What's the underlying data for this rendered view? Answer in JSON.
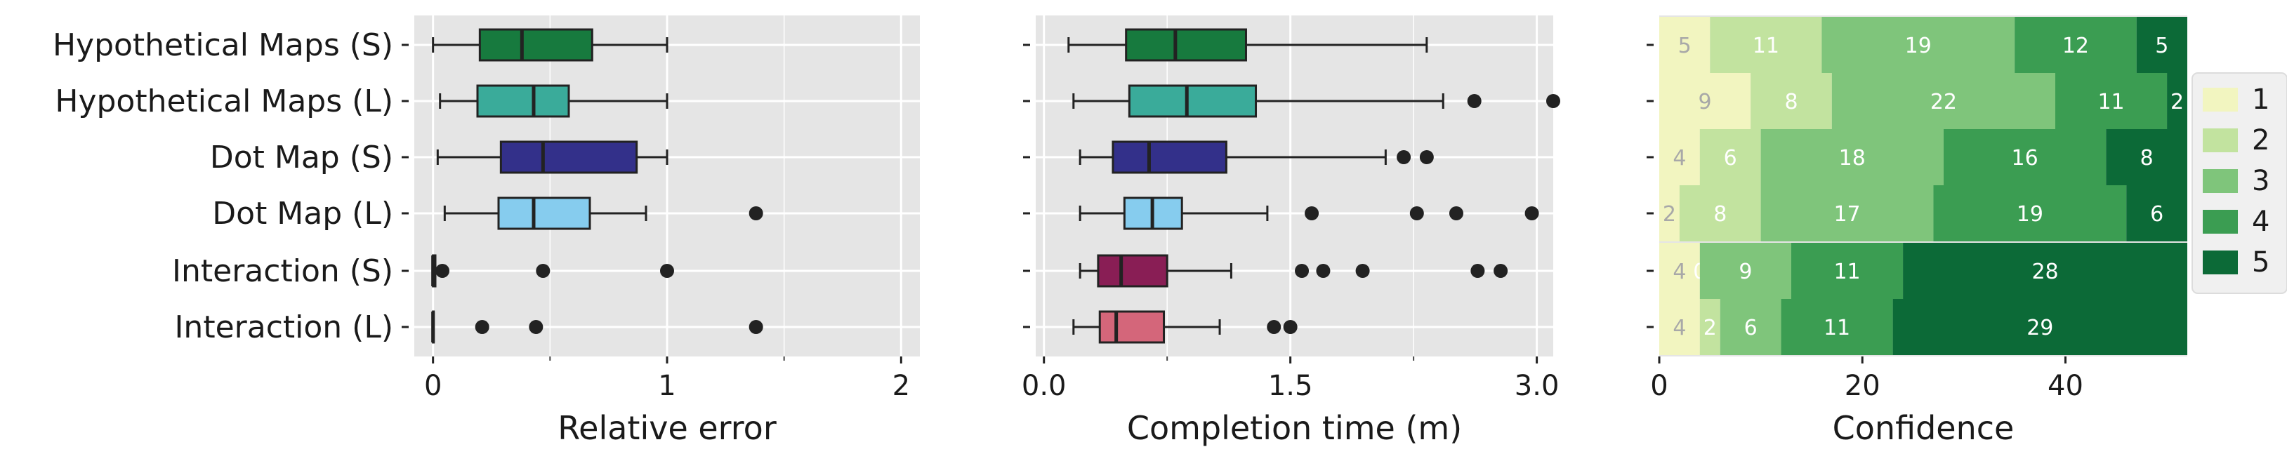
{
  "categories": [
    "Hypothetical Maps (S)",
    "Hypothetical Maps (L)",
    "Dot Map (S)",
    "Dot Map (L)",
    "Interaction (S)",
    "Interaction (L)"
  ],
  "box_colors": [
    "#177a3e",
    "#3aab9a",
    "#33308a",
    "#86ccee",
    "#891e55",
    "#d4667a"
  ],
  "chart_data": [
    {
      "type": "box",
      "xlabel": "Relative error",
      "xlim": [
        -0.08,
        2.08
      ],
      "xticks": [
        0,
        1,
        2
      ],
      "xtick_labels": [
        "0",
        "1",
        "2"
      ],
      "boxes": [
        {
          "whisker_low": 0.0,
          "q1": 0.2,
          "median": 0.38,
          "q3": 0.68,
          "whisker_high": 1.0,
          "outliers": []
        },
        {
          "whisker_low": 0.03,
          "q1": 0.19,
          "median": 0.43,
          "q3": 0.58,
          "whisker_high": 1.0,
          "outliers": []
        },
        {
          "whisker_low": 0.02,
          "q1": 0.29,
          "median": 0.47,
          "q3": 0.87,
          "whisker_high": 1.0,
          "outliers": []
        },
        {
          "whisker_low": 0.05,
          "q1": 0.28,
          "median": 0.43,
          "q3": 0.67,
          "whisker_high": 0.91,
          "outliers": [
            1.38
          ]
        },
        {
          "whisker_low": 0.0,
          "q1": 0.0,
          "median": 0.0,
          "q3": 0.01,
          "whisker_high": 0.01,
          "outliers": [
            0.04,
            0.47,
            1.0
          ]
        },
        {
          "whisker_low": 0.0,
          "q1": 0.0,
          "median": 0.0,
          "q3": 0.0,
          "whisker_high": 0.0,
          "outliers": [
            0.21,
            0.44,
            1.38
          ]
        }
      ]
    },
    {
      "type": "box",
      "xlabel": "Completion time (m)",
      "xlim": [
        -0.05,
        3.1
      ],
      "xticks": [
        0.0,
        1.5,
        3.0
      ],
      "xtick_labels": [
        "0.0",
        "1.5",
        "3.0"
      ],
      "boxes": [
        {
          "whisker_low": 0.15,
          "q1": 0.5,
          "median": 0.8,
          "q3": 1.23,
          "whisker_high": 2.33,
          "outliers": []
        },
        {
          "whisker_low": 0.18,
          "q1": 0.52,
          "median": 0.87,
          "q3": 1.29,
          "whisker_high": 2.43,
          "outliers": [
            2.62,
            3.1
          ]
        },
        {
          "whisker_low": 0.22,
          "q1": 0.42,
          "median": 0.64,
          "q3": 1.11,
          "whisker_high": 2.08,
          "outliers": [
            2.19,
            2.33
          ]
        },
        {
          "whisker_low": 0.22,
          "q1": 0.49,
          "median": 0.66,
          "q3": 0.84,
          "whisker_high": 1.36,
          "outliers": [
            1.63,
            2.27,
            2.51,
            2.97
          ]
        },
        {
          "whisker_low": 0.22,
          "q1": 0.33,
          "median": 0.47,
          "q3": 0.75,
          "whisker_high": 1.14,
          "outliers": [
            1.57,
            1.7,
            1.94,
            2.64,
            2.78
          ]
        },
        {
          "whisker_low": 0.18,
          "q1": 0.34,
          "median": 0.44,
          "q3": 0.73,
          "whisker_high": 1.07,
          "outliers": [
            1.4,
            1.5
          ]
        }
      ]
    },
    {
      "type": "stacked-bar",
      "xlabel": "Confidence",
      "xlim": [
        0,
        52
      ],
      "xticks": [
        0,
        20,
        40
      ],
      "xtick_labels": [
        "0",
        "20",
        "40"
      ],
      "legend": {
        "position": "right",
        "labels": [
          "1",
          "2",
          "3",
          "4",
          "5"
        ],
        "colors": [
          "#f2f5c0",
          "#c2e39f",
          "#7fc57b",
          "#3b9d52",
          "#0c6a37"
        ]
      },
      "series": [
        {
          "name": "1",
          "values": [
            5,
            9,
            4,
            2,
            4,
            4
          ]
        },
        {
          "name": "2",
          "values": [
            11,
            8,
            6,
            8,
            0,
            2
          ]
        },
        {
          "name": "3",
          "values": [
            19,
            22,
            18,
            17,
            9,
            6
          ]
        },
        {
          "name": "4",
          "values": [
            12,
            11,
            16,
            19,
            11,
            11
          ]
        },
        {
          "name": "5",
          "values": [
            5,
            2,
            8,
            6,
            28,
            29
          ]
        }
      ]
    }
  ]
}
